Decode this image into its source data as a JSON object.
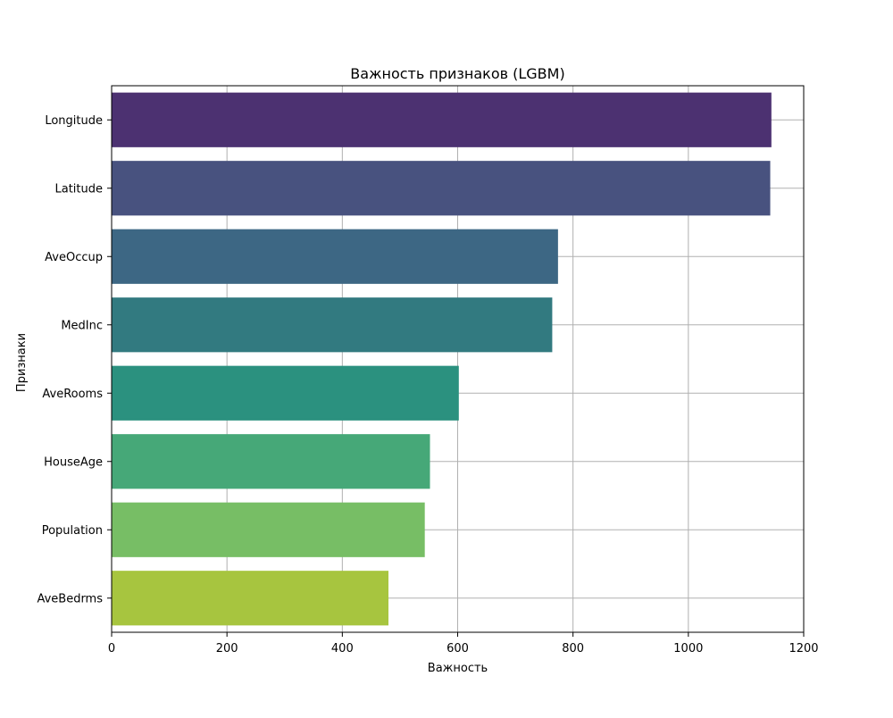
{
  "chart_data": {
    "type": "bar",
    "orientation": "horizontal",
    "title": "Важность признаков (LGBM)",
    "xlabel": "Важность",
    "ylabel": "Признаки",
    "categories": [
      "Longitude",
      "Latitude",
      "AveOccup",
      "MedInc",
      "AveRooms",
      "HouseAge",
      "Population",
      "AveBedrms"
    ],
    "values": [
      1144,
      1142,
      774,
      764,
      602,
      552,
      543,
      480
    ],
    "colors": [
      "#4c3171",
      "#48527f",
      "#3d6784",
      "#327a80",
      "#2b917f",
      "#46a878",
      "#77be65",
      "#a7c53f"
    ],
    "xlim": [
      0,
      1200
    ],
    "xticks": [
      0,
      200,
      400,
      600,
      800,
      1000,
      1200
    ],
    "grid": true
  }
}
